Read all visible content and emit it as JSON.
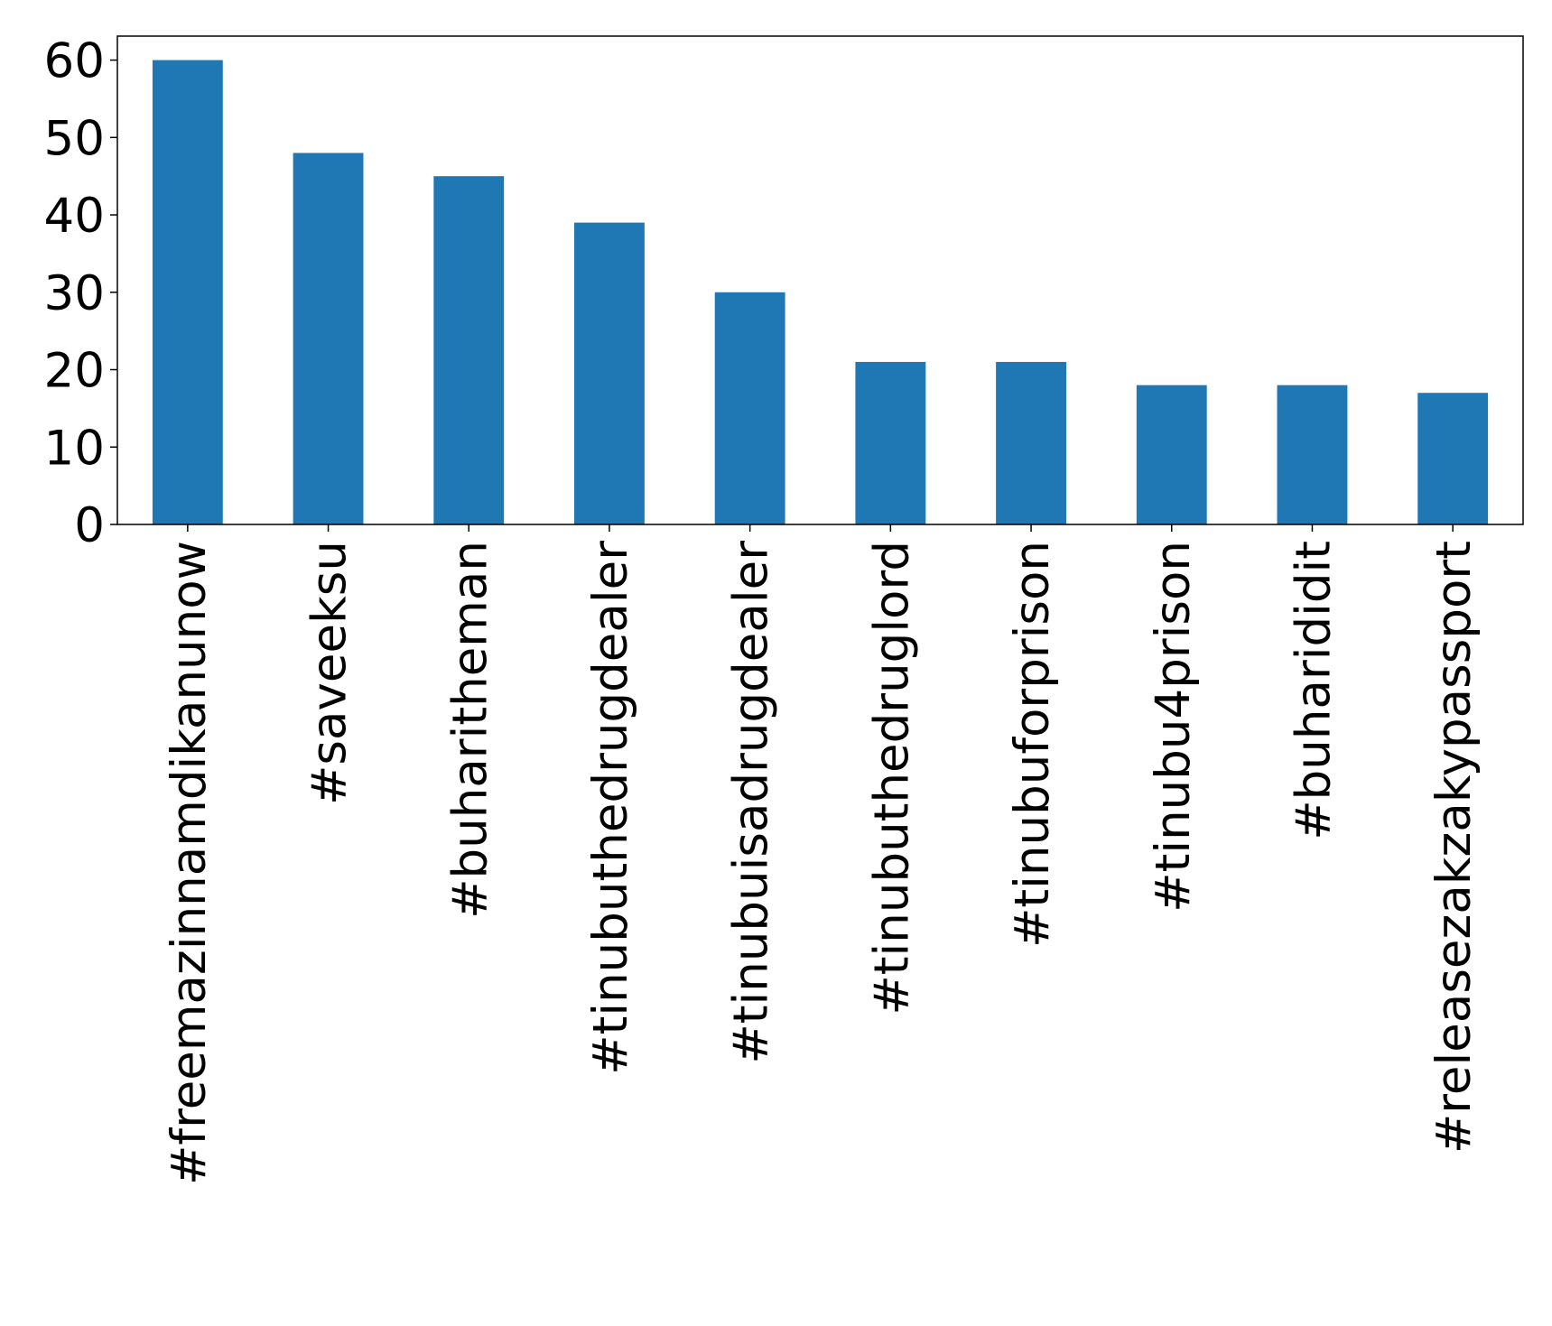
{
  "chart_data": {
    "type": "bar",
    "categories": [
      "#freemazinnamdikanunow",
      "#saveeksu",
      "#buharitheman",
      "#tinubuthedrugdealer",
      "#tinubuisadrugdealer",
      "#tinubuthedruglord",
      "#tinubuforprison",
      "#tinubu4prison",
      "#buharididit",
      "#releasezakzakypassport"
    ],
    "values": [
      60,
      48,
      45,
      39,
      30,
      21,
      21,
      18,
      18,
      17
    ],
    "color": "#1f77b4",
    "ylim": [
      0,
      63.1
    ],
    "yticks": [
      0,
      10,
      20,
      30,
      40,
      50,
      60
    ],
    "grid": false
  }
}
